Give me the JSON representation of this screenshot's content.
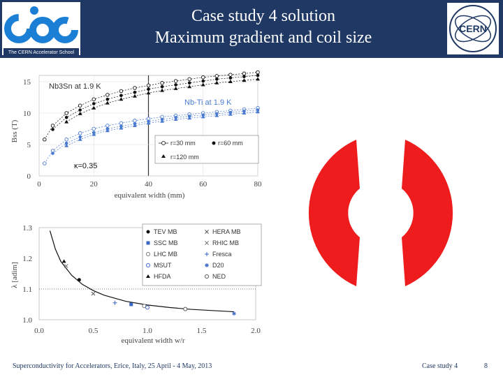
{
  "header": {
    "title_line1": "Case study 4 solution",
    "title_line2": "Maximum gradient and coil size",
    "cas_logo_text": "cas",
    "cas_logo_caption": "The CERN Accelerator School",
    "cern_logo_text": "CERN"
  },
  "footer": {
    "left": "Superconductivity for Accelerators, Erice, Italy, 25 April - 4 May, 2013",
    "middle": "Case study 4",
    "page_number": "8"
  },
  "colors": {
    "header_bg": "#1f3864",
    "coil": "#ee1c1c",
    "nbti": "#4a7bd0",
    "nb3sn": "#111111"
  },
  "chart_data": [
    {
      "type": "scatter",
      "title": "",
      "xlabel": "equivalent width (mm)",
      "ylabel": "Bss (T)",
      "xlim": [
        0,
        80
      ],
      "ylim": [
        0,
        16
      ],
      "x_ticks": [
        "0",
        "20",
        "40",
        "60",
        "80"
      ],
      "y_ticks": [
        "0",
        "5",
        "10",
        "15"
      ],
      "annotations": [
        "Nb3Sn at 1.9 K",
        "Nb-Ti at 1.9 K",
        "κ=0.35"
      ],
      "legend": [
        "r=30 mm",
        "r=60 mm",
        "r=120 mm"
      ],
      "series": [
        {
          "name": "Nb3Sn r=30 mm",
          "x": [
            2,
            5,
            10,
            15,
            20,
            25,
            30,
            35,
            40,
            45,
            50,
            55,
            60,
            65,
            70,
            75,
            80
          ],
          "y": [
            5.8,
            8.0,
            10.0,
            11.2,
            12.2,
            12.9,
            13.5,
            14.0,
            14.4,
            14.8,
            15.1,
            15.4,
            15.7,
            15.9,
            16.1,
            16.3,
            16.5
          ]
        },
        {
          "name": "Nb3Sn r=60 mm",
          "x": [
            5,
            10,
            15,
            20,
            25,
            30,
            35,
            40,
            45,
            50,
            55,
            60,
            65,
            70,
            75,
            80
          ],
          "y": [
            7.4,
            9.3,
            10.5,
            11.5,
            12.2,
            12.8,
            13.3,
            13.8,
            14.2,
            14.5,
            14.8,
            15.1,
            15.4,
            15.6,
            15.8,
            16.0
          ]
        },
        {
          "name": "Nb3Sn r=120 mm",
          "x": [
            10,
            15,
            20,
            25,
            30,
            35,
            40,
            45,
            50,
            55,
            60,
            65,
            70,
            75,
            80
          ],
          "y": [
            8.6,
            9.9,
            10.8,
            11.6,
            12.2,
            12.7,
            13.2,
            13.6,
            13.9,
            14.2,
            14.5,
            14.8,
            15.0,
            15.2,
            15.4
          ]
        },
        {
          "name": "Nb-Ti r=30 mm",
          "x": [
            2,
            5,
            10,
            15,
            20,
            25,
            30,
            35,
            40,
            45,
            50,
            55,
            60,
            65,
            70,
            75,
            80
          ],
          "y": [
            2.0,
            4.0,
            5.8,
            6.8,
            7.5,
            8.0,
            8.4,
            8.8,
            9.1,
            9.4,
            9.6,
            9.8,
            10.0,
            10.2,
            10.4,
            10.6,
            10.8
          ]
        },
        {
          "name": "Nb-Ti r=60 mm",
          "x": [
            5,
            10,
            15,
            20,
            25,
            30,
            35,
            40,
            45,
            50,
            55,
            60,
            65,
            70,
            75,
            80
          ],
          "y": [
            3.6,
            5.2,
            6.2,
            6.9,
            7.5,
            7.9,
            8.3,
            8.7,
            9.0,
            9.3,
            9.5,
            9.7,
            9.9,
            10.1,
            10.3,
            10.5
          ]
        },
        {
          "name": "Nb-Ti r=120 mm",
          "x": [
            10,
            15,
            20,
            25,
            30,
            35,
            40,
            45,
            50,
            55,
            60,
            65,
            70,
            75,
            80
          ],
          "y": [
            4.8,
            5.8,
            6.6,
            7.2,
            7.6,
            8.0,
            8.4,
            8.7,
            9.0,
            9.2,
            9.4,
            9.6,
            9.8,
            10.0,
            10.2
          ]
        }
      ]
    },
    {
      "type": "scatter",
      "title": "",
      "xlabel": "equivalent width w/r",
      "ylabel": "λ [adim]",
      "xlim": [
        0.0,
        2.0
      ],
      "ylim": [
        1.0,
        1.3
      ],
      "x_ticks": [
        "0.0",
        "0.5",
        "1.0",
        "1.5",
        "2.0"
      ],
      "y_ticks": [
        "1.0",
        "1.1",
        "1.2",
        "1.3"
      ],
      "legend": [
        "TEV MB",
        "HERA MB",
        "SSC MB",
        "RHIC MB",
        "LHC MB",
        "Fresca",
        "MSUT",
        "D20",
        "HFDA",
        "NED"
      ],
      "fit_curve": {
        "x": [
          0.1,
          0.15,
          0.2,
          0.3,
          0.4,
          0.5,
          0.6,
          0.8,
          1.0,
          1.2,
          1.4,
          1.6,
          1.8
        ],
        "y": [
          1.29,
          1.23,
          1.19,
          1.145,
          1.115,
          1.095,
          1.08,
          1.06,
          1.048,
          1.04,
          1.034,
          1.03,
          1.026
        ]
      },
      "points": [
        {
          "name": "TEV MB",
          "x": 0.37,
          "y": 1.13
        },
        {
          "name": "HERA MB",
          "x": 0.5,
          "y": 1.085
        },
        {
          "name": "SSC MB",
          "x": 0.85,
          "y": 1.05
        },
        {
          "name": "RHIC MB",
          "x": 0.25,
          "y": 1.175
        },
        {
          "name": "LHC MB",
          "x": 0.97,
          "y": 1.045
        },
        {
          "name": "Fresca",
          "x": 0.7,
          "y": 1.055
        },
        {
          "name": "MSUT",
          "x": 1.0,
          "y": 1.04
        },
        {
          "name": "D20",
          "x": 1.8,
          "y": 1.02
        },
        {
          "name": "HFDA",
          "x": 0.23,
          "y": 1.19
        },
        {
          "name": "NED",
          "x": 1.35,
          "y": 1.035
        }
      ]
    }
  ]
}
